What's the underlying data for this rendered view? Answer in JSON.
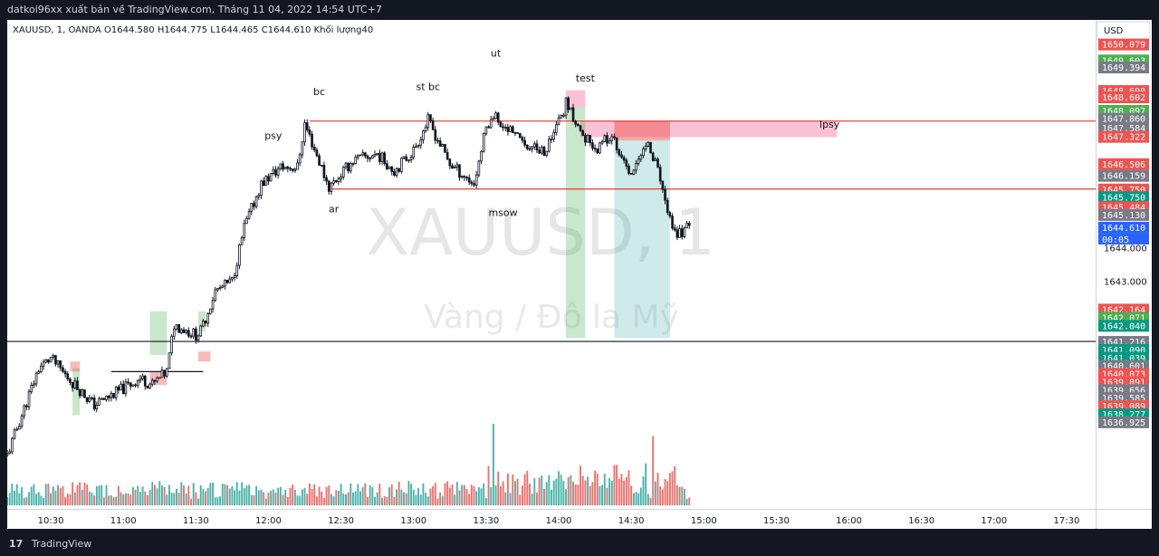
{
  "header": {
    "title": "datkoi96xx xuất bản về TradingView.com, Tháng 11 04, 2022 14:54 UTC+7"
  },
  "footer": {
    "logo": "17",
    "brand": "TradingView"
  },
  "legend": {
    "symbol": "XAUUSD, 1, OANDA",
    "open": "O1644.580",
    "high": "H1644.775",
    "low": "L1644.465",
    "close": "C1644.610",
    "volume": "Khối lượng40"
  },
  "watermark": {
    "symbol": "XAUUSD, 1",
    "name": "Vàng / Đô la Mỹ"
  },
  "currency": "USD",
  "colors": {
    "up": "#26a69a",
    "down": "#ef5350",
    "grey": "#787b86",
    "blue": "#2962ff",
    "line": "#e53935",
    "zone": "#f48fb1"
  },
  "chart_data": {
    "type": "candlestick",
    "ylim": [
      1636.2,
      1650.8
    ],
    "xlim": [
      "10:12",
      "17:42"
    ],
    "x_ticks": [
      "10:30",
      "11:00",
      "11:30",
      "12:00",
      "12:30",
      "13:00",
      "13:30",
      "14:00",
      "14:30",
      "15:00",
      "15:30",
      "16:00",
      "16:30",
      "17:00",
      "17:30"
    ],
    "y_ticks": [
      "1644.000",
      "1643.000"
    ],
    "key_points": [
      {
        "t": "10:12",
        "v": 1637.8
      },
      {
        "t": "10:18",
        "v": 1639.0
      },
      {
        "t": "10:25",
        "v": 1640.4
      },
      {
        "t": "10:30",
        "v": 1640.7
      },
      {
        "t": "10:36",
        "v": 1640.2
      },
      {
        "t": "10:48",
        "v": 1639.3
      },
      {
        "t": "11:00",
        "v": 1639.8
      },
      {
        "t": "11:07",
        "v": 1640.1
      },
      {
        "t": "11:12",
        "v": 1639.9
      },
      {
        "t": "11:18",
        "v": 1640.3
      },
      {
        "t": "11:21",
        "v": 1641.7
      },
      {
        "t": "11:30",
        "v": 1641.4
      },
      {
        "t": "11:32",
        "v": 1641.5
      },
      {
        "t": "11:38",
        "v": 1642.7
      },
      {
        "t": "11:45",
        "v": 1643.0
      },
      {
        "t": "11:50",
        "v": 1644.6
      },
      {
        "t": "11:57",
        "v": 1645.9
      },
      {
        "t": "12:05",
        "v": 1646.4
      },
      {
        "t": "12:12",
        "v": 1646.4
      },
      {
        "t": "12:15",
        "v": 1647.7
      },
      {
        "t": "12:25",
        "v": 1645.8
      },
      {
        "t": "12:35",
        "v": 1646.6
      },
      {
        "t": "12:45",
        "v": 1646.8
      },
      {
        "t": "12:52",
        "v": 1646.3
      },
      {
        "t": "13:00",
        "v": 1646.9
      },
      {
        "t": "13:06",
        "v": 1647.8
      },
      {
        "t": "13:15",
        "v": 1646.5
      },
      {
        "t": "13:25",
        "v": 1645.9
      },
      {
        "t": "13:30",
        "v": 1647.6
      },
      {
        "t": "13:33",
        "v": 1648.0
      },
      {
        "t": "13:45",
        "v": 1647.1
      },
      {
        "t": "13:55",
        "v": 1646.9
      },
      {
        "t": "14:03",
        "v": 1648.3
      },
      {
        "t": "14:08",
        "v": 1647.6
      },
      {
        "t": "14:15",
        "v": 1646.9
      },
      {
        "t": "14:22",
        "v": 1647.4
      },
      {
        "t": "14:30",
        "v": 1646.1
      },
      {
        "t": "14:37",
        "v": 1647.2
      },
      {
        "t": "14:42",
        "v": 1646.0
      },
      {
        "t": "14:48",
        "v": 1644.4
      },
      {
        "t": "14:54",
        "v": 1644.6
      }
    ],
    "volume_spikes": [
      {
        "t": "13:33",
        "value": 100
      },
      {
        "t": "14:39",
        "value": 85
      }
    ],
    "horizontal_lines": [
      {
        "name": "upper-level",
        "value": 1647.78,
        "color": "#e53935",
        "from": "12:17"
      },
      {
        "name": "lower-level",
        "value": 1645.75,
        "color": "#e53935",
        "from": "12:26"
      },
      {
        "name": "black-level",
        "value": 1641.2,
        "color": "#131722",
        "from": "10:12"
      },
      {
        "name": "base-line",
        "value": 1640.3,
        "color": "#131722",
        "from": "10:55",
        "to": "11:33"
      }
    ],
    "zones": [
      {
        "name": "lpsy-zone",
        "color": "pink",
        "from": "14:09",
        "to": "15:55",
        "top": 1647.78,
        "bottom": 1647.3
      },
      {
        "name": "test-zone",
        "color": "pink",
        "from": "14:03",
        "to": "14:11",
        "top": 1648.7,
        "bottom": 1648.2
      },
      {
        "name": "green-box-1",
        "color": "green",
        "from": "14:03",
        "to": "14:11",
        "top": 1648.2,
        "bottom": 1641.3
      },
      {
        "name": "red-box-2",
        "color": "red",
        "from": "14:23",
        "to": "14:46",
        "top": 1647.78,
        "bottom": 1647.2
      },
      {
        "name": "green-box-2",
        "color": "green",
        "from": "14:23",
        "to": "14:46",
        "top": 1647.2,
        "bottom": 1641.3
      },
      {
        "name": "green-box-a",
        "color": "green",
        "from": "11:11",
        "to": "11:18",
        "top": 1642.1,
        "bottom": 1640.8
      },
      {
        "name": "green-box-b",
        "color": "green",
        "from": "11:31",
        "to": "11:34",
        "top": 1642.1,
        "bottom": 1641.5
      },
      {
        "name": "red-box-b",
        "color": "red",
        "from": "11:31",
        "to": "11:36",
        "top": 1640.9,
        "bottom": 1640.6
      },
      {
        "name": "red-box-a",
        "color": "red",
        "from": "11:11",
        "to": "11:18",
        "top": 1640.3,
        "bottom": 1639.9
      },
      {
        "name": "green-box-c",
        "color": "green",
        "from": "10:39",
        "to": "10:42",
        "top": 1640.4,
        "bottom": 1639.0
      },
      {
        "name": "red-box-c",
        "color": "red",
        "from": "10:38",
        "to": "10:42",
        "top": 1640.6,
        "bottom": 1640.3
      }
    ],
    "annotations": [
      {
        "text": "psy",
        "t": "12:02",
        "v": 1647.25
      },
      {
        "text": "bc",
        "t": "12:21",
        "v": 1648.55
      },
      {
        "text": "st bc",
        "t": "13:06",
        "v": 1648.7
      },
      {
        "text": "ut",
        "t": "13:34",
        "v": 1649.7
      },
      {
        "text": "test",
        "t": "14:11",
        "v": 1648.96
      },
      {
        "text": "lpsy",
        "t": "15:52",
        "v": 1647.58
      },
      {
        "text": "ar",
        "t": "12:27",
        "v": 1645.05
      },
      {
        "text": "msow",
        "t": "13:37",
        "v": 1644.95
      }
    ],
    "price_labels": [
      {
        "text": "1650.079",
        "color": "#ef5350",
        "v": 1650.079
      },
      {
        "text": "1649.603",
        "color": "#4caf50",
        "v": 1649.603
      },
      {
        "text": "1649.394",
        "color": "#787b86",
        "v": 1649.394
      },
      {
        "text": "1648.690",
        "color": "#ef5350",
        "v": 1648.69
      },
      {
        "text": "1648.602",
        "color": "#ef5350",
        "v": 1648.502
      },
      {
        "text": "1648.097",
        "color": "#4caf50",
        "v": 1648.097
      },
      {
        "text": "1647.860",
        "color": "#787b86",
        "v": 1647.86
      },
      {
        "text": "1647.584",
        "color": "#787b86",
        "v": 1647.584
      },
      {
        "text": "1647.322",
        "color": "#ef5350",
        "v": 1647.322
      },
      {
        "text": "1646.506",
        "color": "#ef5350",
        "v": 1646.506
      },
      {
        "text": "1646.159",
        "color": "#787b86",
        "v": 1646.159
      },
      {
        "text": "1645.750",
        "color": "#ef5350",
        "v": 1645.75
      },
      {
        "text": "1645.750",
        "color": "#089981",
        "v": 1645.52
      },
      {
        "text": "1645.484",
        "color": "#ef5350",
        "v": 1645.22
      },
      {
        "text": "1645.130",
        "color": "#787b86",
        "v": 1644.99
      },
      {
        "text": "1644.610",
        "color": "#2962ff",
        "v": 1644.61
      },
      {
        "text": "1642.164",
        "color": "#ef5350",
        "v": 1642.164
      },
      {
        "text": "1642.071",
        "color": "#4caf50",
        "v": 1641.92
      },
      {
        "text": "1642.040",
        "color": "#089981",
        "v": 1641.68
      },
      {
        "text": "1641.216",
        "color": "#787b86",
        "v": 1641.2
      },
      {
        "text": "1641.090",
        "color": "#089981",
        "v": 1640.96
      },
      {
        "text": "1641.039",
        "color": "#089981",
        "v": 1640.72
      },
      {
        "text": "1640.601",
        "color": "#787b86",
        "v": 1640.48
      },
      {
        "text": "1640.073",
        "color": "#ef5350",
        "v": 1640.24
      },
      {
        "text": "1639.891",
        "color": "#ef5350",
        "v": 1640.0
      },
      {
        "text": "1639.656",
        "color": "#787b86",
        "v": 1639.76
      },
      {
        "text": "1639.585",
        "color": "#787b86",
        "v": 1639.52
      },
      {
        "text": "1639.089",
        "color": "#ef5350",
        "v": 1639.28
      },
      {
        "text": "1638.277",
        "color": "#089981",
        "v": 1639.04
      },
      {
        "text": "1636.925",
        "color": "#787b86",
        "v": 1638.8
      }
    ],
    "countdown": "00:05"
  }
}
